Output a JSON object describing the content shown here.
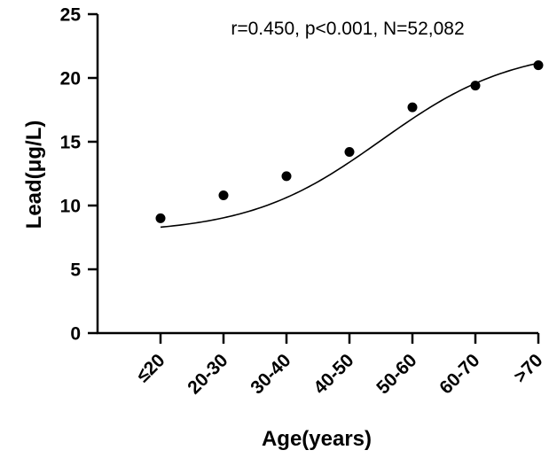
{
  "chart_data": {
    "type": "scatter",
    "title": "",
    "annotation": "r=0.450, p<0.001, N=52,082",
    "xlabel": "Age(years)",
    "ylabel": "Lead(μg/L)",
    "categories": [
      "≤20",
      "20-30",
      "30-40",
      "40-50",
      "50-60",
      "60-70",
      ">70"
    ],
    "values": [
      9.0,
      10.8,
      12.3,
      14.2,
      17.7,
      19.4,
      21.0
    ],
    "fit_line": "sigmoidal curve",
    "ylim": [
      0,
      25
    ],
    "yticks": [
      0,
      5,
      10,
      15,
      20,
      25
    ],
    "grid": false,
    "legend": "none"
  }
}
